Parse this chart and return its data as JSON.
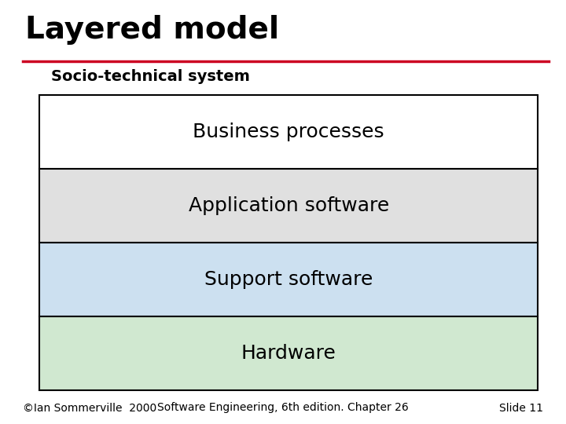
{
  "title": "Layered model",
  "title_fontsize": 28,
  "title_color": "#000000",
  "title_font": "Arial",
  "title_bold": true,
  "red_line_color": "#cc0022",
  "subtitle": "Socio-technical system",
  "subtitle_fontsize": 14,
  "subtitle_bold": true,
  "layers": [
    {
      "label": "Business processes",
      "color": "#ffffff",
      "edgecolor": "#000000"
    },
    {
      "label": "Application software",
      "color": "#e0e0e0",
      "edgecolor": "#000000"
    },
    {
      "label": "Support software",
      "color": "#cce0f0",
      "edgecolor": "#000000"
    },
    {
      "label": "Hardware",
      "color": "#d0e8d0",
      "edgecolor": "#000000"
    }
  ],
  "layer_fontsize": 18,
  "footer_left": "©Ian Sommerville  2000",
  "footer_center": "Software Engineering, 6th edition. Chapter 26",
  "footer_right": "Slide 11",
  "footer_fontsize": 10,
  "bg_color": "#ffffff"
}
